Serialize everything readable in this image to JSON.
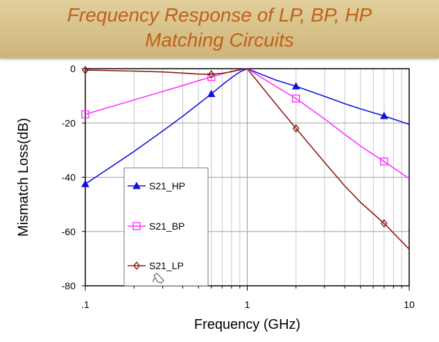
{
  "header": {
    "title_line1": "Frequency Response of LP, BP, HP",
    "title_line2": "Matching Circuits"
  },
  "chart_data": {
    "type": "line",
    "title": "Frequency Response of LP, BP, HP Matching Circuits",
    "xlabel": "Frequency (GHz)",
    "ylabel": "Mismatch Loss(dB)",
    "xscale": "log",
    "xlim": [
      0.1,
      10
    ],
    "ylim": [
      -80,
      0
    ],
    "xticks": [
      0.1,
      1,
      10
    ],
    "xtick_labels": [
      ".1",
      "1",
      "10"
    ],
    "yticks": [
      0,
      -20,
      -40,
      -60,
      -80
    ],
    "ytick_labels": [
      "0",
      "-20",
      "-40",
      "-60",
      "-80"
    ],
    "grid": true,
    "legend_position": "lower-left",
    "series": [
      {
        "name": "S21_HP",
        "color": "#1010e0",
        "marker": "triangle",
        "x": [
          0.1,
          0.15,
          0.2,
          0.3,
          0.4,
          0.5,
          0.6,
          0.7,
          0.8,
          0.9,
          1,
          1.5,
          2,
          3,
          4,
          5,
          7,
          10
        ],
        "y": [
          -42.5,
          -35.5,
          -30.5,
          -23,
          -17.5,
          -13,
          -9.3,
          -6,
          -3.3,
          -1.2,
          0,
          -4.2,
          -6.5,
          -10.2,
          -12.9,
          -14.8,
          -17.4,
          -20.5
        ],
        "marker_x": [
          0.1,
          0.6,
          2,
          7
        ],
        "marker_y": [
          -42.5,
          -9.3,
          -6.5,
          -17.4
        ]
      },
      {
        "name": "S21_BP",
        "color": "#ff30ff",
        "marker": "square",
        "x": [
          0.1,
          0.2,
          0.3,
          0.4,
          0.5,
          0.6,
          0.7,
          0.8,
          0.9,
          1,
          1.5,
          2,
          3,
          4,
          5,
          7,
          10
        ],
        "y": [
          -16.8,
          -11.5,
          -8.4,
          -6.2,
          -4.4,
          -3.1,
          -1.9,
          -1,
          -0.3,
          0,
          -6.5,
          -11,
          -18.5,
          -24.2,
          -28.5,
          -34.2,
          -40.5
        ],
        "marker_x": [
          0.1,
          0.6,
          2,
          7
        ],
        "marker_y": [
          -16.8,
          -3.1,
          -11,
          -34.2
        ]
      },
      {
        "name": "S21_LP",
        "color": "#8b1a10",
        "marker": "diamond",
        "x": [
          0.1,
          0.2,
          0.3,
          0.4,
          0.5,
          0.6,
          0.7,
          0.8,
          0.9,
          1,
          1.5,
          2,
          3,
          4,
          5,
          7,
          10
        ],
        "y": [
          -0.5,
          -0.9,
          -1.2,
          -1.6,
          -2,
          -2.1,
          -1.7,
          -1.1,
          -0.4,
          0,
          -13,
          -22,
          -34.5,
          -43.2,
          -49.2,
          -57,
          -66.5
        ],
        "marker_x": [
          0.1,
          0.6,
          2,
          7
        ],
        "marker_y": [
          -0.5,
          -2.1,
          -22,
          -57
        ]
      }
    ]
  }
}
